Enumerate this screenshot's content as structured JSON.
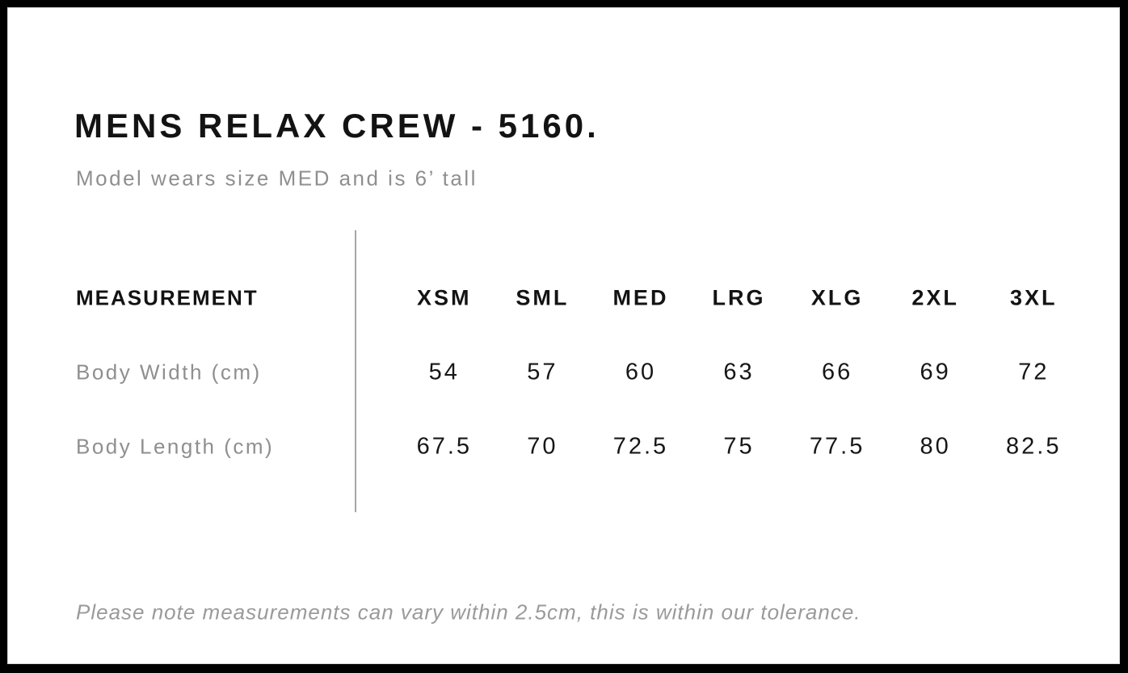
{
  "header": {
    "title": "MENS RELAX CREW - 5160.",
    "subtitle": "Model wears size MED and is 6’ tall"
  },
  "table": {
    "measurement_header": "MEASUREMENT",
    "sizes": [
      "XSM",
      "SML",
      "MED",
      "LRG",
      "XLG",
      "2XL",
      "3XL"
    ],
    "rows": [
      {
        "label": "Body Width (cm)",
        "values": [
          "54",
          "57",
          "60",
          "63",
          "66",
          "69",
          "72"
        ]
      },
      {
        "label": "Body Length (cm)",
        "values": [
          "67.5",
          "70",
          "72.5",
          "75",
          "77.5",
          "80",
          "82.5"
        ]
      }
    ]
  },
  "footer": {
    "note": "Please note measurements can vary within 2.5cm, this is within our tolerance."
  },
  "colors": {
    "frame": "#000000",
    "background": "#ffffff",
    "text_primary": "#131313",
    "text_muted": "#8f8f8f",
    "divider": "#a6a6a6"
  }
}
